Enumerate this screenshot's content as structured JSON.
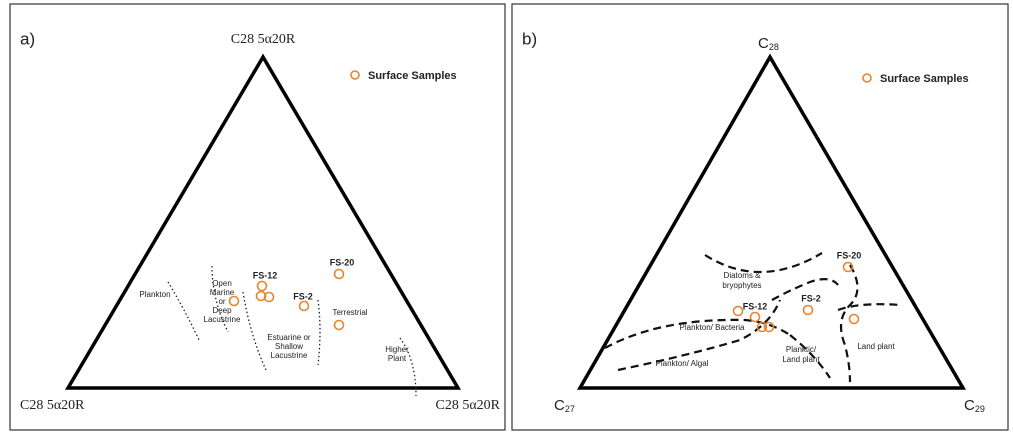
{
  "panel_a": {
    "label": "a)",
    "apex_top": "C28 5α20R",
    "apex_left": "C28 5α20R",
    "apex_right": "C28 5α20R",
    "legend": "Surface Samples",
    "regions": [
      {
        "lines": [
          "Plankton"
        ]
      },
      {
        "lines": [
          "Open",
          "Marine",
          "or",
          "Deep",
          "Lacustrine"
        ]
      },
      {
        "lines": [
          "Estuarine or",
          "Shallow",
          "Lacustrine"
        ]
      },
      {
        "lines": [
          "Terrestrial"
        ]
      },
      {
        "lines": [
          "Higher",
          "Plant"
        ]
      }
    ],
    "samples": [
      "FS-12",
      "FS-2",
      "FS-20"
    ]
  },
  "panel_b": {
    "label": "b)",
    "apex_top": {
      "main": "C",
      "sub": "28"
    },
    "apex_left": {
      "main": "C",
      "sub": "27"
    },
    "apex_right": {
      "main": "C",
      "sub": "29"
    },
    "legend": "Surface Samples",
    "regions": [
      {
        "lines": [
          "Diatoms &",
          "bryophytes"
        ]
      },
      {
        "lines": [
          "Plankton/ Bacteria"
        ]
      },
      {
        "lines": [
          "Planktic/",
          "Land plant"
        ]
      },
      {
        "lines": [
          "Land plant"
        ]
      },
      {
        "lines": [
          "Plankton/ Algal"
        ]
      }
    ],
    "samples": [
      "FS-12",
      "FS-2",
      "FS-20"
    ]
  }
}
